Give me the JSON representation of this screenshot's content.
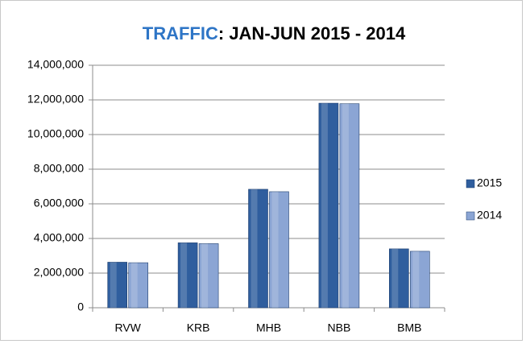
{
  "chart_data": {
    "type": "bar",
    "title": [
      "TRAFFIC",
      ":  JAN-JUN 2015 - 2014"
    ],
    "categories": [
      "RVW",
      "KRB",
      "MHB",
      "NBB",
      "BMB"
    ],
    "series": [
      {
        "name": "2015",
        "color": "#2f5e9e",
        "values": [
          2630000,
          3750000,
          6840000,
          11810000,
          3400000
        ]
      },
      {
        "name": "2014",
        "color": "#8ba5d4",
        "values": [
          2600000,
          3700000,
          6700000,
          11780000,
          3260000
        ]
      }
    ],
    "ylim": [
      0,
      14000000
    ],
    "yticks": [
      0,
      {
        "value": 2000000,
        "label": "2,000,000"
      },
      {
        "value": 4000000,
        "label": "4,000,000"
      },
      {
        "value": 6000000,
        "label": "6,000,000"
      },
      {
        "value": 8000000,
        "label": "8,000,000"
      },
      {
        "value": 10000000,
        "label": "10,000,000"
      },
      {
        "value": 12000000,
        "label": "12,000,000"
      },
      {
        "value": 14000000,
        "label": "14,000,000"
      }
    ],
    "grid": true,
    "legend": "right",
    "title_colors": [
      "#2e75c6",
      "#000000"
    ]
  }
}
